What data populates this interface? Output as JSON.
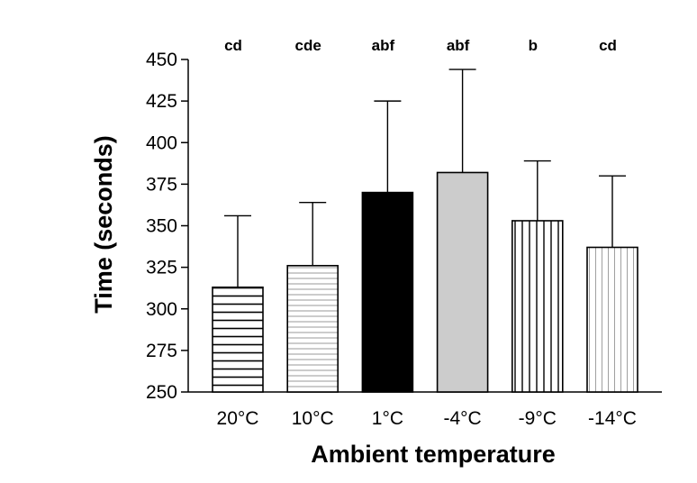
{
  "chart_data": {
    "type": "bar",
    "categories": [
      "20°C",
      "10°C",
      "1°C",
      "-4°C",
      "-9°C",
      "-14°C"
    ],
    "values": [
      313,
      326,
      370,
      382,
      353,
      337
    ],
    "error_upper": [
      356,
      364,
      425,
      444,
      389,
      380
    ],
    "significance_labels": [
      "cd",
      "cde",
      "abf",
      "abf",
      "b",
      "cd"
    ],
    "bar_fills": [
      "horizontal-lines-dark",
      "horizontal-lines-light",
      "solid-black",
      "solid-gray",
      "vertical-lines-dark",
      "vertical-lines-light"
    ],
    "colors": {
      "black": "#000000",
      "gray": "#cccccc",
      "light_line": "#a0a0a0"
    },
    "xlabel": "Ambient temperature",
    "ylabel": "Time (seconds)",
    "ylim": [
      250,
      450
    ],
    "yticks": [
      250,
      275,
      300,
      325,
      350,
      375,
      400,
      425,
      450
    ],
    "grid": false,
    "legend": "none"
  }
}
